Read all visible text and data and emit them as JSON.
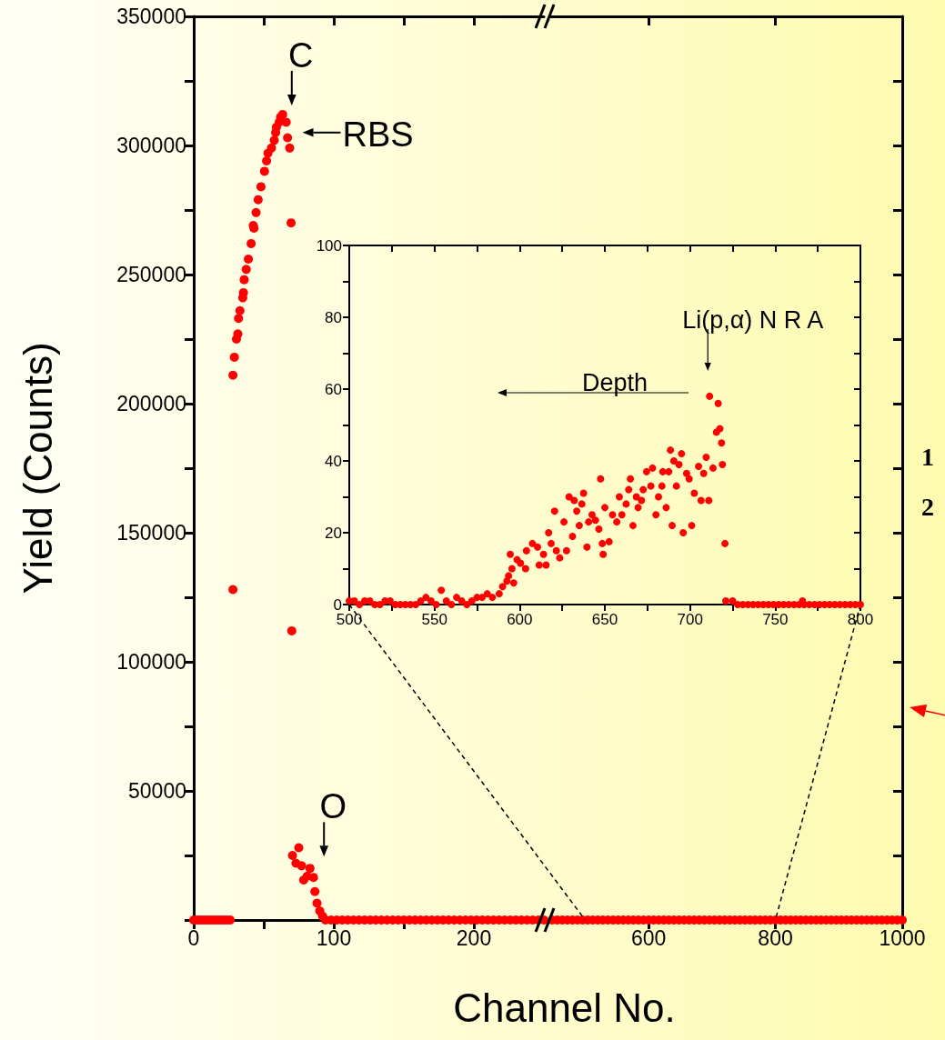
{
  "chart_data": [
    {
      "type": "scatter",
      "xlabel": "Channel No.",
      "ylabel": "Yield (Counts)",
      "marker": "circle",
      "xlim": [
        0,
        250
      ],
      "xticks": [
        0,
        {
          "value": 50,
          "label": null
        },
        100,
        {
          "value": 150,
          "label": null
        },
        200
      ],
      "ylim": [
        0,
        350000
      ],
      "yticks": [
        {
          "value": 0,
          "label": null
        },
        {
          "value": 25000,
          "label": null
        },
        50000,
        {
          "value": 75000,
          "label": null
        },
        100000,
        {
          "value": 125000,
          "label": null
        },
        150000,
        {
          "value": 175000,
          "label": null
        },
        200000,
        {
          "value": 225000,
          "label": null
        },
        250000,
        {
          "value": 275000,
          "label": null
        },
        300000,
        {
          "value": 325000,
          "label": null
        },
        350000
      ],
      "series": [
        {
          "color": "#ff0000",
          "x": [
            0,
            2,
            4,
            6,
            8,
            10,
            12,
            14,
            16,
            18,
            20,
            22,
            24,
            26,
            28,
            28,
            29,
            30.5,
            31.5,
            32,
            33,
            35,
            35.5,
            36,
            37.5,
            39,
            41,
            42.5,
            43,
            44.5,
            46,
            48,
            50.5,
            52,
            53,
            55.5,
            57.5,
            58.5,
            59,
            61,
            63.5,
            62,
            66,
            67,
            68.5,
            69.5,
            70,
            70.5,
            75,
            73,
            77,
            78.5,
            81,
            83,
            85.5,
            86.5,
            88,
            90,
            92,
            94,
            98,
            102,
            106,
            110,
            114,
            118,
            122,
            126,
            130,
            134,
            138,
            142,
            146,
            150,
            154,
            158,
            162,
            166,
            170,
            174,
            178,
            182,
            186,
            190,
            194,
            198,
            202,
            206,
            210,
            214,
            218,
            222,
            226,
            230,
            234,
            238,
            242,
            246,
            250
          ],
          "values": [
            0,
            0,
            0,
            0,
            0,
            0,
            0,
            0,
            0,
            0,
            0,
            0,
            0,
            0,
            128000,
            211000,
            218000,
            225000,
            227000,
            233000,
            236000,
            241000,
            243000,
            248000,
            252000,
            256000,
            262000,
            269000,
            268000,
            274000,
            279000,
            284000,
            290000,
            294000,
            297000,
            299000,
            302000,
            305000,
            307000,
            309000,
            312000,
            311000,
            309000,
            303000,
            299000,
            270000,
            112000,
            25000,
            28000,
            22000,
            21000,
            15500,
            17000,
            20000,
            16500,
            11000,
            6500,
            3500,
            1500,
            0,
            0,
            0,
            0,
            0,
            0,
            0,
            0,
            0,
            0,
            0,
            0,
            0,
            0,
            0,
            0,
            0,
            0,
            0,
            0,
            0,
            0,
            0,
            0,
            0,
            0,
            0,
            0,
            0,
            0,
            0,
            0,
            0,
            0,
            0,
            0,
            0,
            0,
            0,
            0
          ]
        }
      ],
      "annotations": [
        {
          "text": "C",
          "x": 63.5,
          "y": 312000
        },
        {
          "text": "RBS",
          "x": 68.5,
          "y": 305000
        },
        {
          "text": "O",
          "x": 86.5,
          "y": 21000
        }
      ]
    },
    {
      "type": "scatter",
      "marker": "circle",
      "tick_labels": "x",
      "xlim": [
        445,
        1000
      ],
      "xticks": [
        600,
        800,
        1000
      ],
      "ylim": [
        0,
        350000
      ],
      "yticks": [
        {
          "value": 0,
          "label": null
        },
        {
          "value": 25000,
          "label": null
        },
        50000,
        {
          "value": 75000,
          "label": null
        },
        100000,
        {
          "value": 125000,
          "label": null
        },
        150000,
        {
          "value": 175000,
          "label": null
        },
        200000,
        {
          "value": 225000,
          "label": null
        },
        250000,
        {
          "value": 275000,
          "label": null
        },
        300000,
        {
          "value": 325000,
          "label": null
        },
        350000
      ],
      "series": [
        {
          "color": "#ff0000",
          "x": [
            448,
            456,
            464,
            472,
            480,
            488,
            496,
            504,
            512,
            520,
            528,
            536,
            544,
            552,
            560,
            568,
            576,
            584,
            592,
            600,
            608,
            616,
            624,
            632,
            640,
            648,
            656,
            664,
            672,
            680,
            688,
            696,
            704,
            712,
            720,
            728,
            736,
            744,
            752,
            760,
            768,
            776,
            784,
            792,
            800,
            808,
            816,
            824,
            832,
            840,
            848,
            856,
            864,
            872,
            880,
            888,
            896,
            904,
            912,
            920,
            928,
            936,
            944,
            952,
            960,
            968,
            976,
            984,
            992,
            1000
          ],
          "values": [
            0,
            0,
            0,
            0,
            0,
            0,
            0,
            0,
            0,
            0,
            0,
            0,
            0,
            0,
            0,
            0,
            0,
            0,
            0,
            0,
            0,
            0,
            0,
            0,
            0,
            0,
            0,
            0,
            0,
            0,
            0,
            0,
            0,
            0,
            0,
            0,
            0,
            0,
            0,
            0,
            0,
            0,
            0,
            0,
            0,
            0,
            0,
            0,
            0,
            0,
            0,
            0,
            0,
            0,
            0,
            0,
            0,
            0,
            0,
            0,
            0,
            0,
            0,
            0,
            0,
            0,
            0,
            0,
            0,
            0
          ]
        }
      ],
      "annotations": [
        "1",
        "2"
      ]
    },
    {
      "type": "scatter",
      "marker": "circle",
      "xlim": [
        500,
        800
      ],
      "xticks": [
        500,
        {
          "value": 525,
          "label": null
        },
        550,
        {
          "value": 575,
          "label": null
        },
        600,
        {
          "value": 625,
          "label": null
        },
        650,
        {
          "value": 675,
          "label": null
        },
        700,
        {
          "value": 725,
          "label": null
        },
        750,
        {
          "value": 775,
          "label": null
        },
        800
      ],
      "ylim": [
        0,
        100
      ],
      "yticks": [
        0,
        {
          "value": 10,
          "label": null
        },
        20,
        {
          "value": 30,
          "label": null
        },
        40,
        {
          "value": 50,
          "label": null
        },
        60,
        {
          "value": 70,
          "label": null
        },
        80,
        {
          "value": 90,
          "label": null
        },
        100
      ],
      "series": [
        {
          "color": "#ff0000",
          "x": [
            500,
            503,
            506,
            509,
            512,
            515,
            518,
            521,
            524,
            527,
            530,
            533,
            536,
            539,
            542,
            545,
            548,
            551,
            554,
            557,
            560,
            563,
            566,
            569,
            572,
            575,
            578,
            581,
            584,
            588,
            590,
            592.5,
            593.5,
            594.5,
            595.5,
            596.5,
            598.5,
            600.5,
            603.5,
            604,
            607.5,
            610.5,
            611.5,
            614,
            615.5,
            617,
            618.5,
            620.5,
            621.5,
            623.5,
            626,
            627.5,
            629,
            631,
            632,
            633.5,
            635,
            636.5,
            637.5,
            639.5,
            640.5,
            642.5,
            644.5,
            646.5,
            647.5,
            648.5,
            649,
            650,
            652.5,
            654.5,
            657,
            658.5,
            660,
            662.5,
            664,
            665,
            666.5,
            668.5,
            669.5,
            671.5,
            672.5,
            674.5,
            677,
            678,
            680,
            681.5,
            683.5,
            684,
            686,
            687.5,
            688.5,
            689.5,
            690.5,
            692,
            693.5,
            695,
            696,
            698,
            699.5,
            702.5,
            701,
            705,
            706.5,
            708,
            709.5,
            711,
            711.5,
            713.5,
            715.5,
            716.5,
            717.5,
            718.5,
            719,
            720.5,
            721,
            725,
            766,
            728,
            731,
            734,
            737,
            740,
            743,
            746,
            749,
            752,
            755,
            758,
            761,
            764,
            767,
            770,
            773,
            776,
            779,
            782,
            785,
            788,
            791,
            794,
            797,
            800
          ],
          "values": [
            1,
            1,
            0,
            1,
            1,
            0,
            0,
            1,
            1,
            0,
            0,
            0,
            0,
            0,
            1,
            2,
            1,
            0,
            4,
            1,
            0,
            2,
            1,
            0,
            1,
            2,
            2,
            3,
            2,
            3,
            5,
            6.5,
            8,
            14,
            10,
            6,
            12.5,
            11.5,
            10,
            15,
            17,
            16,
            11,
            14,
            11,
            20,
            17,
            26,
            15,
            13,
            23,
            15,
            30,
            19,
            29,
            26,
            22,
            28,
            31,
            16,
            23,
            25,
            23.5,
            21,
            35,
            17,
            14,
            27,
            17.5,
            25,
            23,
            30,
            25,
            28,
            32,
            35,
            22,
            30,
            27,
            29,
            32,
            37,
            33,
            38,
            25,
            30,
            33,
            37,
            27,
            37,
            43,
            22,
            40,
            33,
            39,
            42,
            20,
            36.5,
            35,
            31,
            22,
            38.5,
            29,
            36.5,
            41,
            29,
            58,
            38,
            48,
            56,
            49,
            45,
            39,
            17,
            1,
            1,
            1,
            0,
            0,
            0,
            0,
            0,
            0,
            0,
            0,
            0,
            0,
            0,
            0,
            0,
            0,
            0,
            0,
            0,
            0,
            0,
            0,
            0,
            0,
            0,
            0,
            0
          ]
        }
      ],
      "annotations": [
        {
          "text": "Li(p,α) N R A",
          "x": 711.5,
          "y": 58
        },
        "Depth"
      ]
    }
  ]
}
